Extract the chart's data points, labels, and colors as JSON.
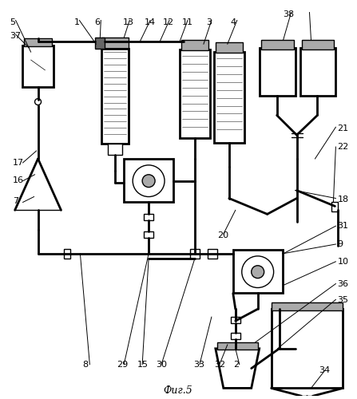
{
  "title": "Фиг.5",
  "bg_color": "#ffffff",
  "lc": "#000000"
}
